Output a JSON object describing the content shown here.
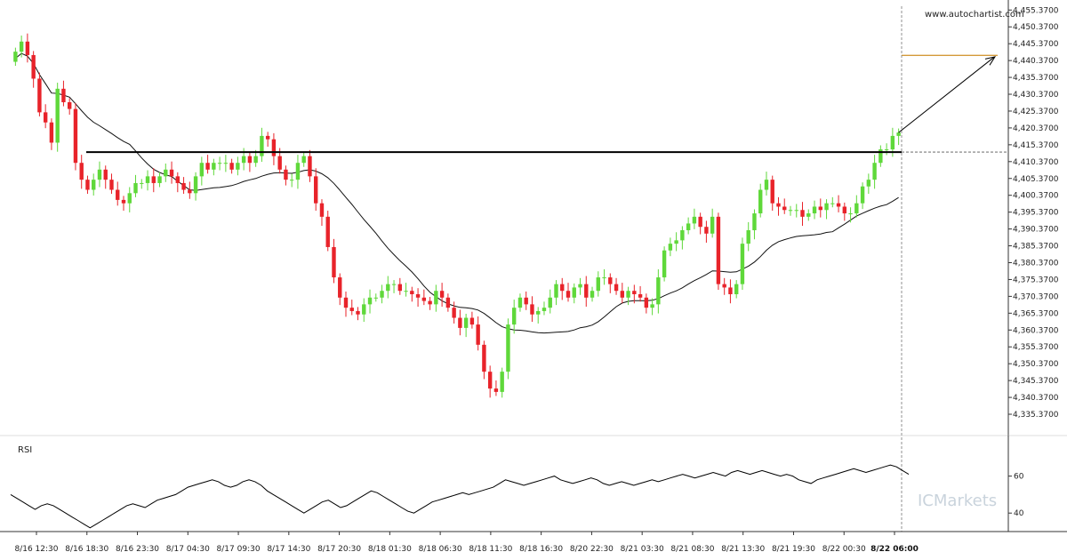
{
  "watermark_site": "www.autochartist.com",
  "brand": "ICMarkets",
  "colors": {
    "up": "#5fd83a",
    "down": "#e8232a",
    "line": "#000000",
    "target": "#d49a3a",
    "ma": "#111111"
  },
  "chart_data": {
    "type": "candlestick",
    "price_ticks": [
      "4,335.3700",
      "4,340.3700",
      "4,345.3700",
      "4,350.3700",
      "4,355.3700",
      "4,360.3700",
      "4,365.3700",
      "4,370.3700",
      "4,375.3700",
      "4,380.3700",
      "4,385.3700",
      "4,390.3700",
      "4,395.3700",
      "4,400.3700",
      "4,405.3700",
      "4,410.3700",
      "4,415.3700",
      "4,420.3700",
      "4,425.3700",
      "4,430.3700",
      "4,435.3700",
      "4,440.3700",
      "4,445.3700",
      "4,450.3700",
      "4,455.3700"
    ],
    "ylim": [
      4333.0,
      4456.5
    ],
    "time_ticks": [
      "8/16 12:30",
      "8/16 18:30",
      "8/16 23:30",
      "8/17 04:30",
      "8/17 09:30",
      "8/17 14:30",
      "8/17 20:30",
      "8/18 01:30",
      "8/18 06:30",
      "8/18 11:30",
      "8/18 16:30",
      "8/20 22:30",
      "8/21 03:30",
      "8/21 08:30",
      "8/21 13:30",
      "8/21 19:30",
      "8/22 00:30",
      "8/22 06:00"
    ],
    "resistance_level": 4413.2,
    "target_level": 4441.9,
    "close": [
      4443,
      4446,
      4442,
      4435,
      4425,
      4422,
      4416,
      4432,
      4428,
      4426,
      4410,
      4405,
      4402,
      4405,
      4408,
      4405,
      4402,
      4399,
      4398,
      4401,
      4404,
      4404,
      4406,
      4404,
      4406,
      4408,
      4406,
      4404,
      4402,
      4401,
      4406,
      4410,
      4408,
      4410,
      4410,
      4410,
      4408,
      4410,
      4412,
      4410,
      4412,
      4418,
      4417,
      4412,
      4408,
      4405,
      4405,
      4410,
      4412,
      4406,
      4398,
      4394,
      4385,
      4376,
      4370,
      4367,
      4366,
      4365,
      4368,
      4370,
      4370,
      4372,
      4374,
      4374,
      4372,
      4372,
      4371,
      4370,
      4369,
      4368,
      4372,
      4370,
      4367,
      4364,
      4361,
      4364,
      4362,
      4356,
      4348,
      4343,
      4342,
      4348,
      4362,
      4367,
      4370,
      4368,
      4365,
      4366,
      4367,
      4370,
      4374,
      4372,
      4370,
      4373,
      4374,
      4370,
      4372,
      4376,
      4376,
      4374,
      4372,
      4370,
      4372,
      4371,
      4370,
      4367,
      4368,
      4376,
      4384,
      4386,
      4387,
      4390,
      4392,
      4394,
      4391,
      4389,
      4394,
      4374,
      4373,
      4371,
      4374,
      4386,
      4390,
      4395,
      4402,
      4405,
      4398,
      4397,
      4396,
      4396,
      4396,
      4394,
      4395,
      4397,
      4396,
      4398,
      4398,
      4397,
      4395,
      4395,
      4398,
      4403,
      4405,
      4410,
      4414,
      4414,
      4418,
      4419
    ],
    "rsi_ticks": [
      "40",
      "60"
    ],
    "rsi_label": "RSI",
    "rsi": [
      50,
      48,
      46,
      44,
      42,
      44,
      45,
      44,
      42,
      40,
      38,
      36,
      34,
      32,
      34,
      36,
      38,
      40,
      42,
      44,
      45,
      44,
      43,
      45,
      47,
      48,
      49,
      50,
      52,
      54,
      55,
      56,
      57,
      58,
      57,
      55,
      54,
      55,
      57,
      58,
      57,
      55,
      52,
      50,
      48,
      46,
      44,
      42,
      40,
      42,
      44,
      46,
      47,
      45,
      43,
      44,
      46,
      48,
      50,
      52,
      51,
      49,
      47,
      45,
      43,
      41,
      40,
      42,
      44,
      46,
      47,
      48,
      49,
      50,
      51,
      50,
      51,
      52,
      53,
      54,
      56,
      58,
      57,
      56,
      55,
      56,
      57,
      58,
      59,
      60,
      58,
      57,
      56,
      57,
      58,
      59,
      58,
      56,
      55,
      56,
      57,
      56,
      55,
      56,
      57,
      58,
      57,
      58,
      59,
      60,
      61,
      60,
      59,
      60,
      61,
      62,
      61,
      60,
      62,
      63,
      62,
      61,
      62,
      63,
      62,
      61,
      60,
      61,
      60,
      58,
      57,
      56,
      58,
      59,
      60,
      61,
      62,
      63,
      64,
      63,
      62,
      63,
      64,
      65,
      66,
      65,
      63,
      61
    ]
  }
}
